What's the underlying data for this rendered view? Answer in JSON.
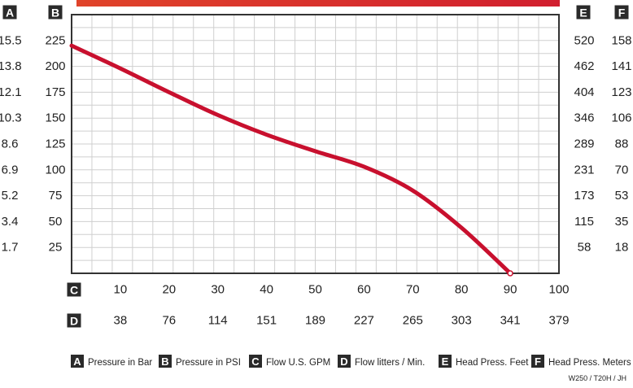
{
  "chart_data": {
    "type": "line",
    "series": [
      {
        "x": [
          0,
          10,
          20,
          30,
          40,
          50,
          60,
          70,
          80,
          90
        ],
        "values": [
          220,
          198,
          175,
          153,
          134,
          118,
          103,
          80,
          44,
          0
        ],
        "color": "#c8102e"
      }
    ],
    "xlim": [
      0,
      100
    ],
    "ylim": [
      0,
      250
    ],
    "grid": true,
    "axes": {
      "A": {
        "letter": "A",
        "ticks": [
          "15.5",
          "13.8",
          "12.1",
          "10.3",
          "8.6",
          "6.9",
          "5.2",
          "3.4",
          "1.7"
        ]
      },
      "B": {
        "letter": "B",
        "ticks": [
          "225",
          "200",
          "175",
          "150",
          "125",
          "100",
          "75",
          "50",
          "25"
        ]
      },
      "C": {
        "letter": "C",
        "ticks": [
          "10",
          "20",
          "30",
          "40",
          "50",
          "60",
          "70",
          "80",
          "90",
          "100"
        ]
      },
      "D": {
        "letter": "D",
        "ticks": [
          "38",
          "76",
          "114",
          "151",
          "189",
          "227",
          "265",
          "303",
          "341",
          "379"
        ]
      },
      "E": {
        "letter": "E",
        "ticks": [
          "520",
          "462",
          "404",
          "346",
          "289",
          "231",
          "173",
          "115",
          "58"
        ]
      },
      "F": {
        "letter": "F",
        "ticks": [
          "158",
          "141",
          "123",
          "106",
          "88",
          "70",
          "53",
          "35",
          "18"
        ]
      }
    },
    "legend": [
      {
        "letter": "A",
        "label": "Pressure in Bar"
      },
      {
        "letter": "B",
        "label": "Pressure in PSI"
      },
      {
        "letter": "C",
        "label": "Flow U.S. GPM"
      },
      {
        "letter": "D",
        "label": "Flow litters / Min."
      },
      {
        "letter": "E",
        "label": "Head Press. Feet"
      },
      {
        "letter": "F",
        "label": "Head Press. Meters"
      }
    ],
    "legend_position": "bottom",
    "footnote": "W250 / T20H / JH"
  },
  "colors": {
    "curve": "#c8102e",
    "top_band": "#d11f2f",
    "grid": "#cfcfcf",
    "box_fill": "#2a2a2a",
    "plot_border": "#333333"
  }
}
